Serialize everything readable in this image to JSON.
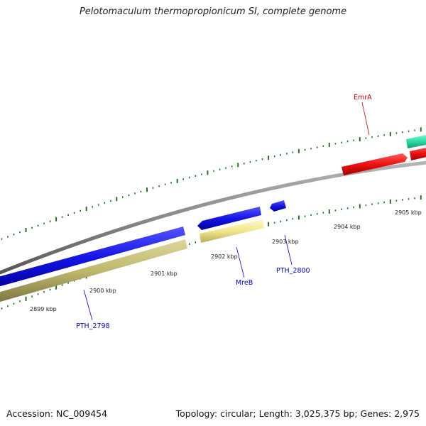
{
  "title": "Pelotomaculum thermopropionicum SI, complete genome",
  "footer": {
    "accession": "Accession: NC_009454",
    "summary": "Topology: circular; Length: 3,025,375 bp; Genes: 2,975"
  },
  "ticks": [
    {
      "label": "2899 kbp"
    },
    {
      "label": "2900 kbp"
    },
    {
      "label": "2901 kbp"
    },
    {
      "label": "2902 kbp"
    },
    {
      "label": "2903 kbp"
    },
    {
      "label": "2904 kbp"
    },
    {
      "label": "2905 kbp"
    }
  ],
  "genes": [
    {
      "name": "PTH_2798",
      "color": "#0000cc"
    },
    {
      "name": "MreB",
      "color": "#0000cc"
    },
    {
      "name": "PTH_2800",
      "color": "#0000cc"
    },
    {
      "name": "EmrA",
      "color": "#cc0000"
    }
  ],
  "colors": {
    "backbone": "#888888",
    "tick": "#1a7a1a",
    "forward_gene": "#1111dd",
    "reverse_gene_khaki": "#bdb76b",
    "reverse_gene_pale": "#f0e68c",
    "red_gene": "#ee1111",
    "teal_gene": "#33ddaa"
  }
}
